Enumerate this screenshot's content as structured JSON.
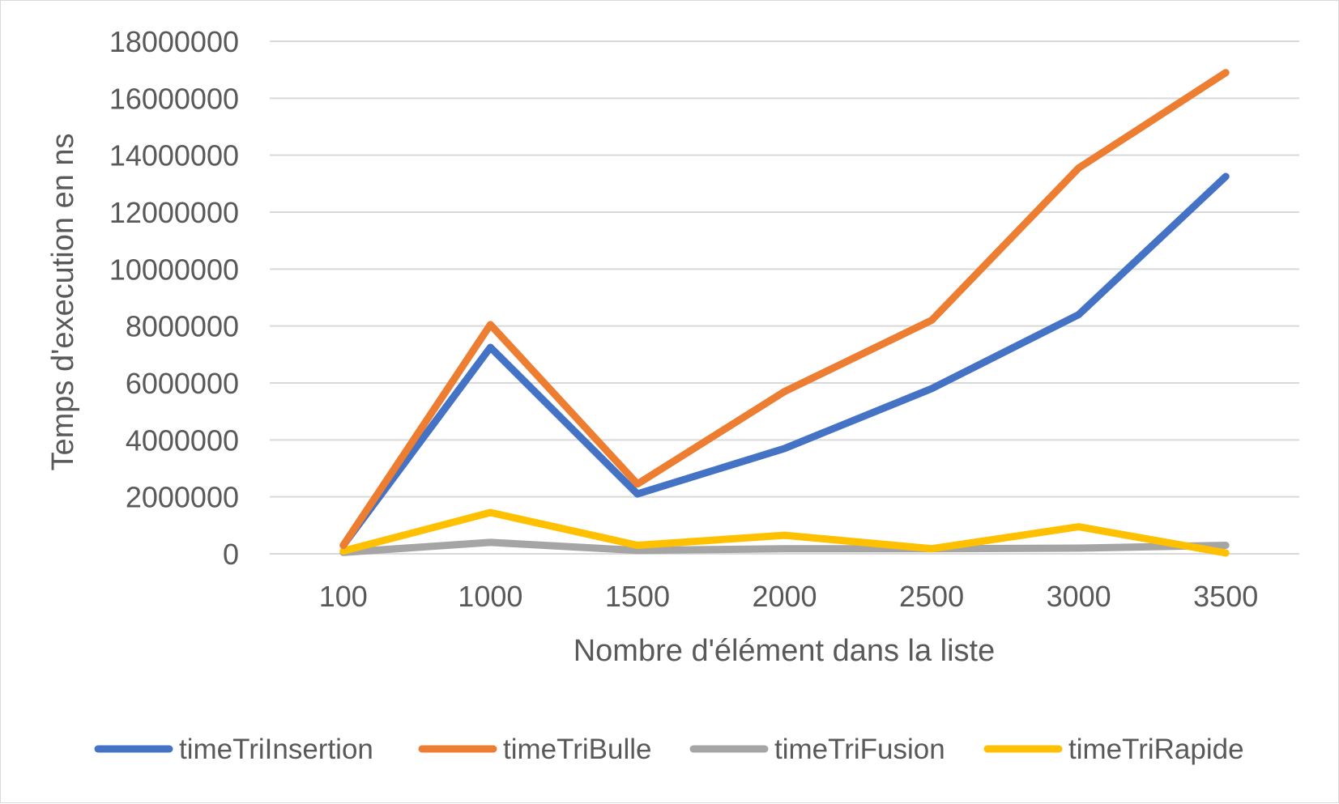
{
  "chart_data": {
    "type": "line",
    "title": "",
    "xlabel": "Nombre d'élément dans la liste",
    "ylabel": "Temps d'execution en ns",
    "categories": [
      "100",
      "1000",
      "1500",
      "2000",
      "2500",
      "3000",
      "3500"
    ],
    "ylim": [
      0,
      18000000
    ],
    "yticks": [
      "0",
      "2000000",
      "4000000",
      "6000000",
      "8000000",
      "10000000",
      "12000000",
      "14000000",
      "16000000",
      "18000000"
    ],
    "grid": true,
    "legend_position": "bottom",
    "series": [
      {
        "name": "timeTriInsertion",
        "color": "#4472C4",
        "values": [
          300000,
          7250000,
          2100000,
          3700000,
          5800000,
          8400000,
          13250000
        ]
      },
      {
        "name": "timeTriBulle",
        "color": "#ED7D31",
        "values": [
          300000,
          8050000,
          2450000,
          5700000,
          8200000,
          13550000,
          16900000
        ]
      },
      {
        "name": "timeTriFusion",
        "color": "#A5A5A5",
        "values": [
          50000,
          400000,
          120000,
          180000,
          180000,
          200000,
          300000
        ]
      },
      {
        "name": "timeTriRapide",
        "color": "#FFC000",
        "values": [
          100000,
          1450000,
          300000,
          650000,
          180000,
          950000,
          30000
        ]
      }
    ]
  }
}
